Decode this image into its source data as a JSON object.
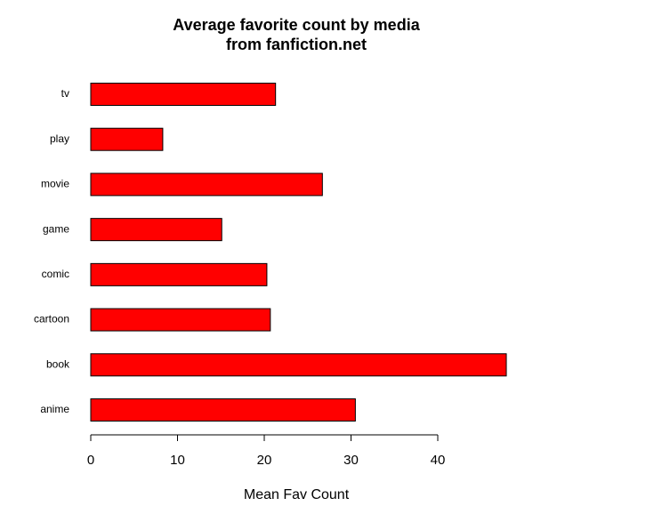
{
  "chart_data": {
    "type": "barh",
    "title": "Average favorite count by media",
    "subtitle": "from fanfiction.net",
    "xlabel": "Mean Fav Count",
    "categories": [
      "anime",
      "book",
      "cartoon",
      "comic",
      "game",
      "movie",
      "play",
      "tv"
    ],
    "values": [
      30.5,
      47.9,
      20.7,
      20.3,
      15.1,
      26.7,
      8.3,
      21.3
    ],
    "color": "#ff0000",
    "xlim": [
      0,
      48
    ],
    "xticks": [
      0,
      10,
      20,
      30,
      40
    ]
  }
}
